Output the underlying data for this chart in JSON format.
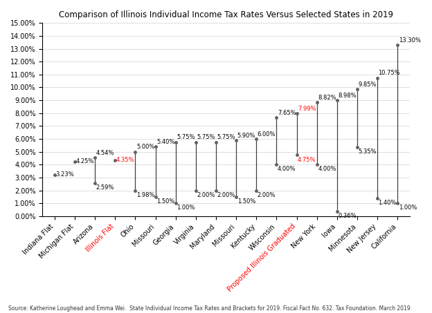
{
  "title": "Comparison of Illinois Individual Income Tax Rates Versus Selected States in 2019",
  "source": "Source: Katherine Loughead and Emma Wei.  State Individual Income Tax Rates and Brackets for 2019. Fiscal Fact No. 632. Tax Foundation. March 2019.",
  "categories": [
    "Indiana Flat",
    "Michigan Flat",
    "Arizona",
    "Illinois Flat",
    "Ohio",
    "Missouri",
    "Georgia",
    "Virginia",
    "Maryland",
    "Missouri",
    "Kentucky",
    "Wisconsin",
    "Proposed Illinois Graduated",
    "New York",
    "Iowa",
    "Minnesota",
    "New Jersey",
    "California"
  ],
  "min_values": [
    3.23,
    4.25,
    2.59,
    4.35,
    1.98,
    1.5,
    1.0,
    2.0,
    2.0,
    1.5,
    2.0,
    4.0,
    4.75,
    4.0,
    0.36,
    5.35,
    1.4,
    1.0
  ],
  "max_values": [
    3.23,
    4.25,
    4.54,
    4.35,
    5.0,
    5.4,
    5.75,
    5.75,
    5.75,
    5.9,
    6.0,
    7.65,
    7.99,
    8.82,
    8.98,
    9.85,
    10.75,
    13.3
  ],
  "is_red": [
    false,
    false,
    false,
    true,
    false,
    false,
    false,
    false,
    false,
    false,
    false,
    false,
    true,
    false,
    false,
    false,
    false,
    false
  ],
  "is_flat": [
    true,
    true,
    false,
    true,
    false,
    false,
    false,
    false,
    false,
    false,
    false,
    false,
    false,
    false,
    false,
    false,
    false,
    false
  ],
  "ylim": [
    0,
    15.0
  ],
  "yticks": [
    0,
    1,
    2,
    3,
    4,
    5,
    6,
    7,
    8,
    9,
    10,
    11,
    12,
    13,
    14,
    15
  ],
  "background_color": "#ffffff",
  "line_color": "#404040",
  "dot_color": "#606060",
  "red_color": "#ff0000",
  "black_color": "#000000",
  "title_fontsize": 8.5,
  "label_fontsize": 6.0,
  "tick_fontsize": 7,
  "source_fontsize": 5.5
}
